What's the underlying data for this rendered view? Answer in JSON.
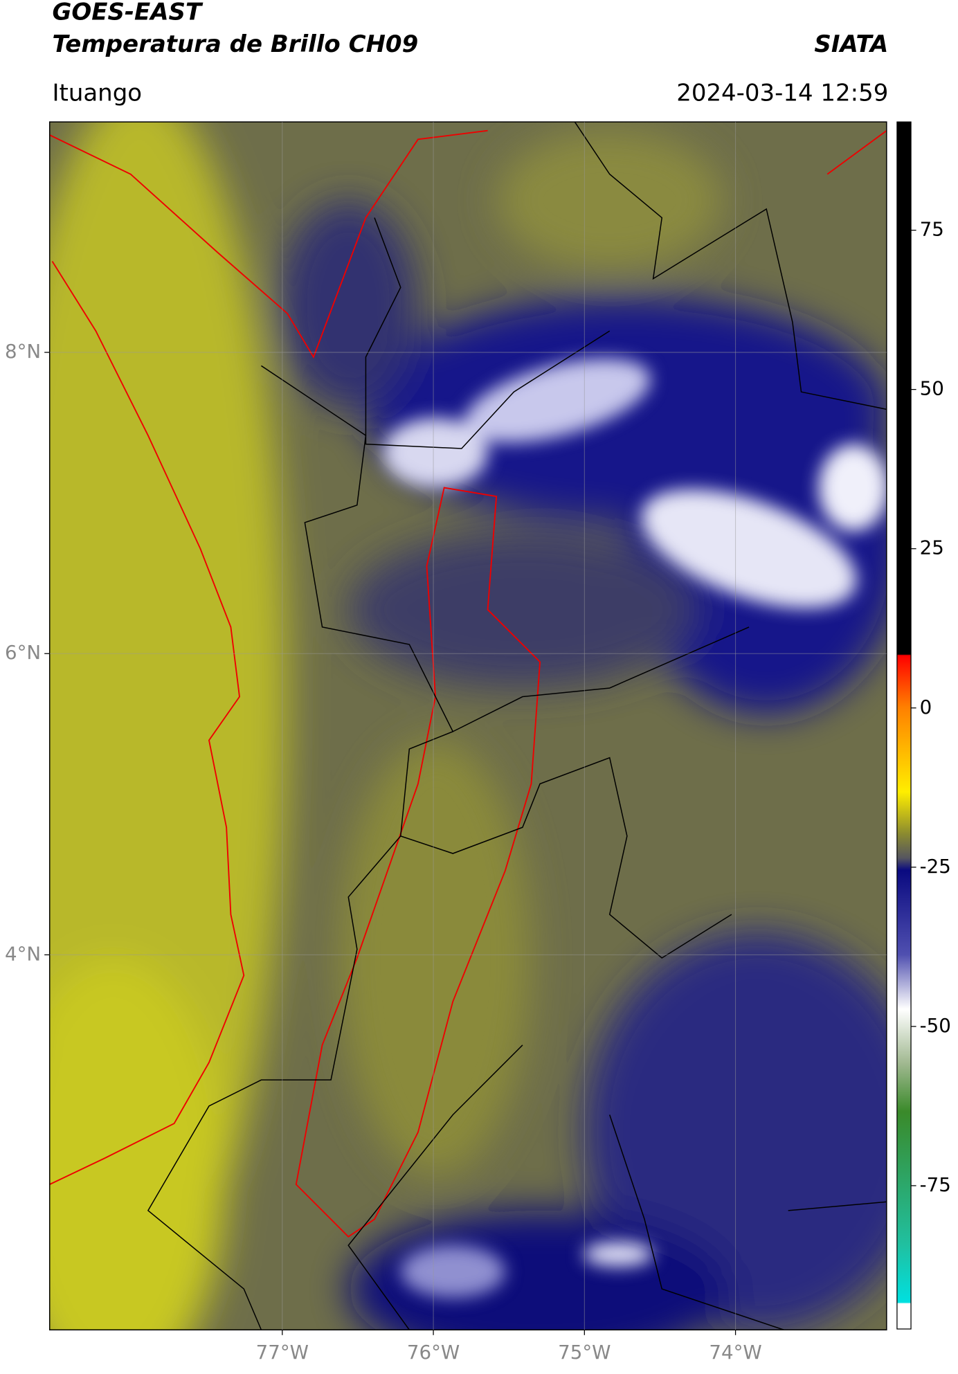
{
  "header": {
    "title": "GOES-EAST",
    "subtitle": "Temperatura de Brillo CH09",
    "credit": "SIATA",
    "region": "Ituango",
    "timestamp": "2024-03-14 12:59"
  },
  "map": {
    "xlim": [
      -78.54,
      -73.0
    ],
    "ylim": [
      1.51,
      9.53
    ],
    "xticks": [
      {
        "value": -77,
        "label": "77°W"
      },
      {
        "value": -76,
        "label": "76°W"
      },
      {
        "value": -75,
        "label": "75°W"
      },
      {
        "value": -74,
        "label": "74°W"
      }
    ],
    "yticks": [
      {
        "value": 8,
        "label": "8°N"
      },
      {
        "value": 6,
        "label": "6°N"
      },
      {
        "value": 4,
        "label": "4°N"
      }
    ],
    "grid": true
  },
  "colorbar": {
    "lim": [
      -97.5,
      92
    ],
    "ticks": [
      75,
      50,
      25,
      0,
      -25,
      -50,
      -75
    ]
  }
}
